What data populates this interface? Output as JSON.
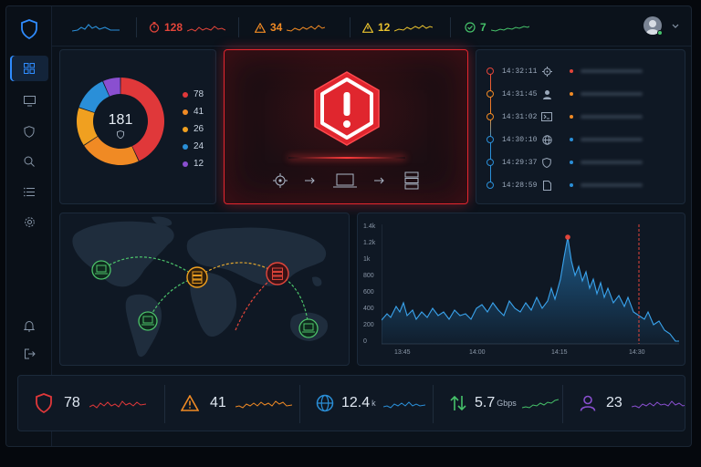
{
  "top_stats": [
    {
      "value": "128",
      "color": "#e3453a",
      "icon": "clock-alert-icon"
    },
    {
      "value": "34",
      "color": "#f08a24",
      "icon": "warning-icon"
    },
    {
      "value": "12",
      "color": "#e8c12e",
      "icon": "info-icon"
    },
    {
      "value": "7",
      "color": "#46c26a",
      "icon": "check-circle-icon"
    }
  ],
  "donut": {
    "total": "181",
    "segments": [
      {
        "value": 78,
        "label": "78",
        "color": "#e0383a"
      },
      {
        "value": 41,
        "label": "41",
        "color": "#f08a24"
      },
      {
        "value": 26,
        "label": "26",
        "color": "#f0a020"
      },
      {
        "value": 24,
        "label": "24",
        "color": "#2a8fd8"
      },
      {
        "value": 12,
        "label": "12",
        "color": "#8a4fd0"
      }
    ]
  },
  "timeline": [
    {
      "time": "14:32:11",
      "color": "#e3453a",
      "icon": "target-icon"
    },
    {
      "time": "14:31:45",
      "color": "#f08a24",
      "icon": "user-icon"
    },
    {
      "time": "14:31:02",
      "color": "#f08a24",
      "icon": "terminal-icon"
    },
    {
      "time": "14:30:10",
      "color": "#2a8fd8",
      "icon": "globe-icon"
    },
    {
      "time": "14:29:37",
      "color": "#2a8fd8",
      "icon": "shield-icon"
    },
    {
      "time": "14:28:59",
      "color": "#2a8fd8",
      "icon": "file-icon"
    }
  ],
  "traffic_chart": {
    "y_ticks": [
      "1.4k",
      "1.2k",
      "1k",
      "800",
      "600",
      "400",
      "200",
      "0"
    ],
    "x_ticks": [
      "13:45",
      "14:00",
      "14:15",
      "14:30"
    ]
  },
  "bottom_stats": [
    {
      "value": "78",
      "unit": "",
      "color": "#e0383a",
      "icon": "shield-icon"
    },
    {
      "value": "41",
      "unit": "",
      "color": "#f08a24",
      "icon": "warning-icon"
    },
    {
      "value": "12.4",
      "unit": "k",
      "color": "#2a8fd8",
      "icon": "globe-icon"
    },
    {
      "value": "5.7",
      "unit": "Gbps",
      "color": "#46c26a",
      "icon": "transfer-arrows-icon"
    },
    {
      "value": "23",
      "unit": "",
      "color": "#8a4fd0",
      "icon": "users-icon"
    }
  ],
  "theme": {
    "accent": "#2f8cff",
    "alert": "#e3262f"
  }
}
